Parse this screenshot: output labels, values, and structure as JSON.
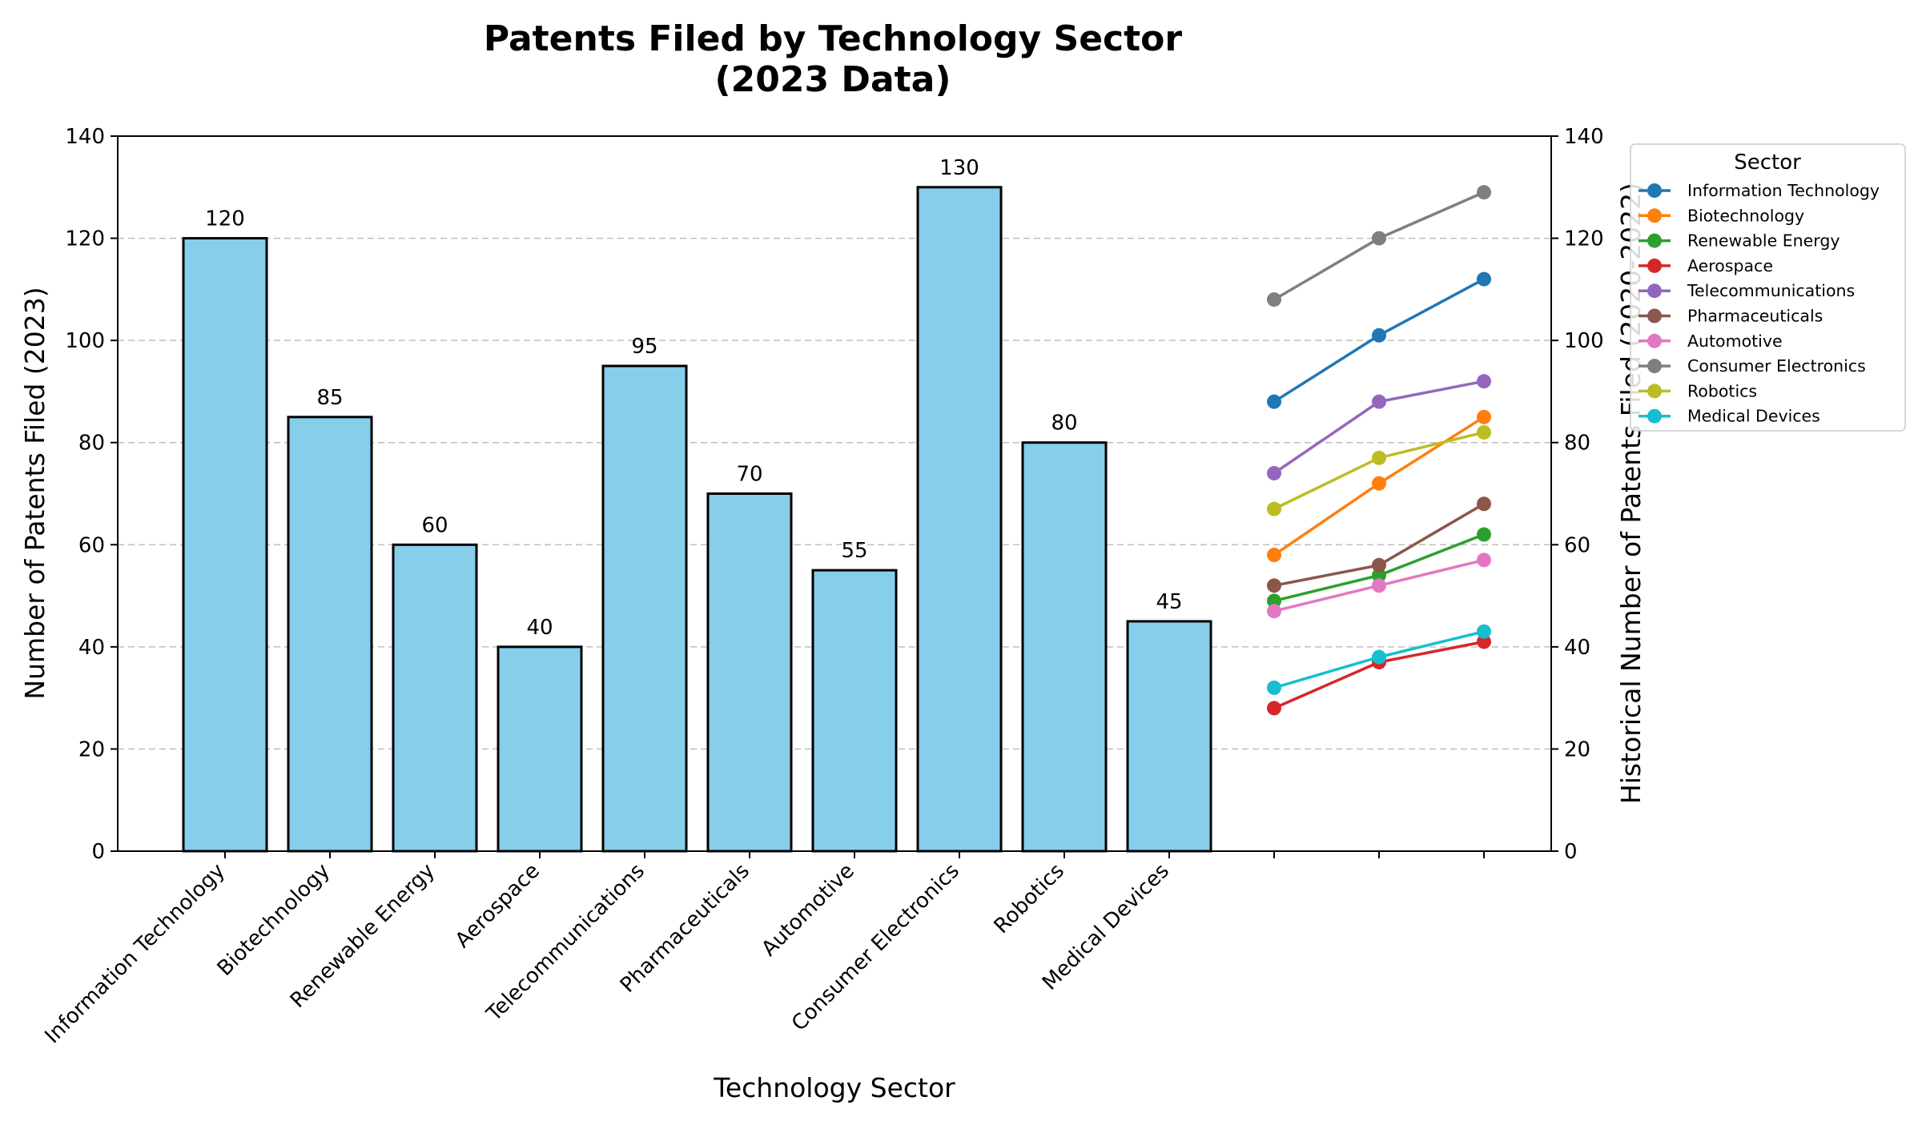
{
  "chart_data": {
    "type": "bar",
    "title_lines": [
      "Patents Filed by Technology Sector",
      "(2023 Data)"
    ],
    "xlabel": "Technology Sector",
    "ylabel": "Number of Patents Filed (2023)",
    "ylabel_right": "Historical Number of Patents Filed (2020-2022)",
    "ylim": [
      0,
      140
    ],
    "yticks": [
      0,
      20,
      40,
      60,
      80,
      100,
      120,
      140
    ],
    "grid": "horizontal dashed",
    "bar_color": "#87ceeb",
    "categories": [
      "Information Technology",
      "Biotechnology",
      "Renewable Energy",
      "Aerospace",
      "Telecommunications",
      "Pharmaceuticals",
      "Automotive",
      "Consumer Electronics",
      "Robotics",
      "Medical Devices"
    ],
    "values": [
      120,
      85,
      60,
      40,
      95,
      70,
      55,
      130,
      80,
      45
    ],
    "historical": {
      "legend_title": "Sector",
      "legend_position": "upper right, outside plot",
      "series": [
        {
          "name": "Information Technology",
          "color": "#1f77b4",
          "values": [
            88,
            101,
            112
          ]
        },
        {
          "name": "Biotechnology",
          "color": "#ff7f0e",
          "values": [
            58,
            72,
            85
          ]
        },
        {
          "name": "Renewable Energy",
          "color": "#2ca02c",
          "values": [
            49,
            54,
            62
          ]
        },
        {
          "name": "Aerospace",
          "color": "#d62728",
          "values": [
            28,
            37,
            41
          ]
        },
        {
          "name": "Telecommunications",
          "color": "#9467bd",
          "values": [
            74,
            88,
            92
          ]
        },
        {
          "name": "Pharmaceuticals",
          "color": "#8c564b",
          "values": [
            52,
            56,
            68
          ]
        },
        {
          "name": "Automotive",
          "color": "#e377c2",
          "values": [
            47,
            52,
            57
          ]
        },
        {
          "name": "Consumer Electronics",
          "color": "#7f7f7f",
          "values": [
            108,
            120,
            129
          ]
        },
        {
          "name": "Robotics",
          "color": "#bcbd22",
          "values": [
            67,
            77,
            82
          ]
        },
        {
          "name": "Medical Devices",
          "color": "#17becf",
          "values": [
            32,
            38,
            43
          ]
        }
      ]
    }
  }
}
